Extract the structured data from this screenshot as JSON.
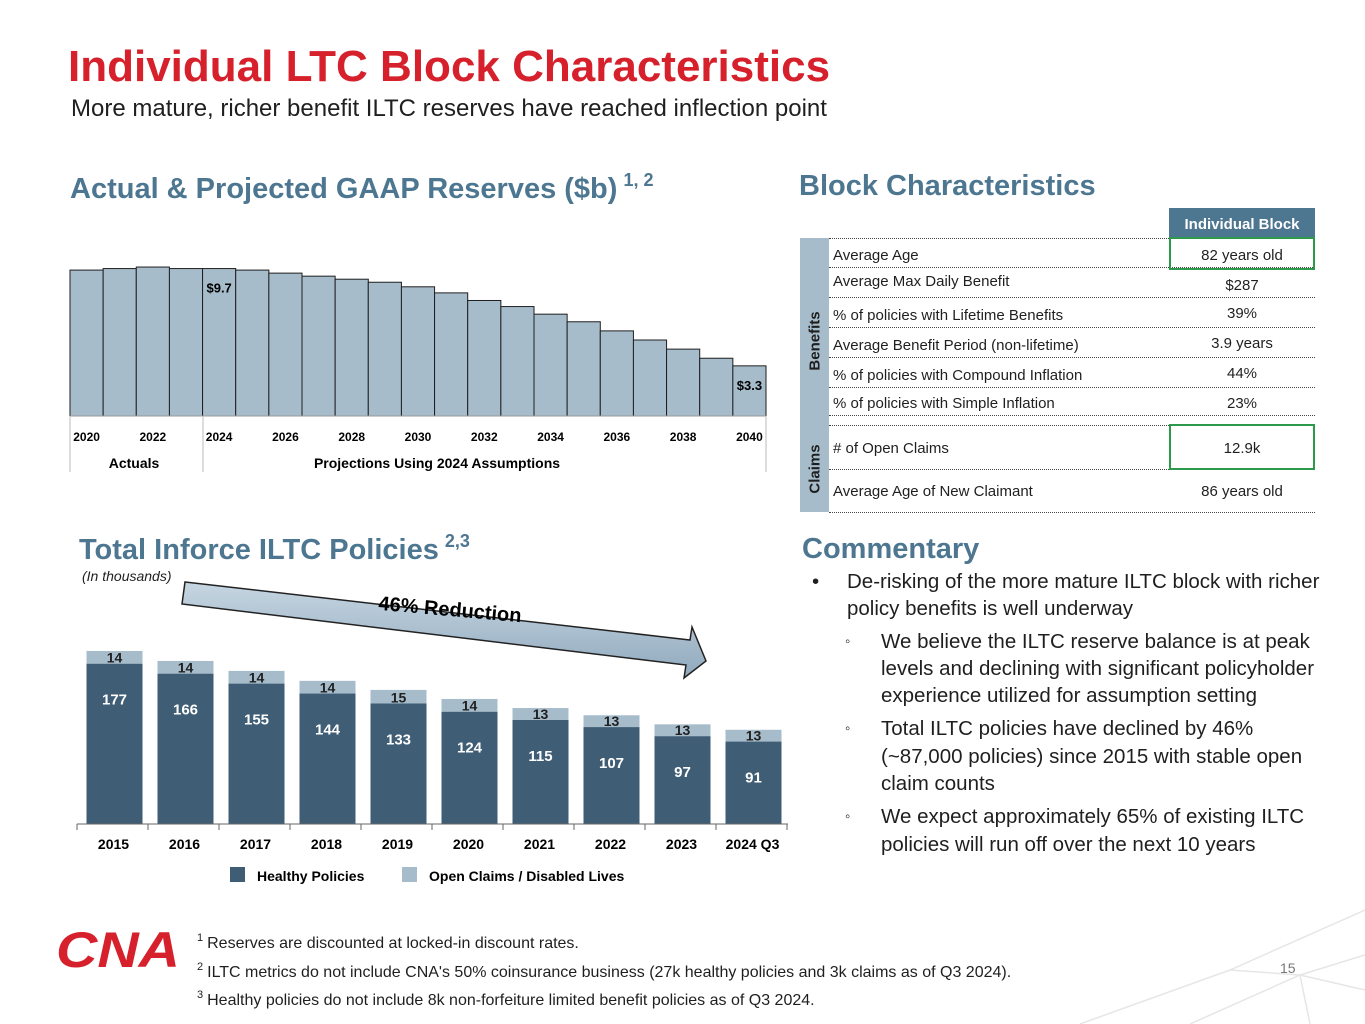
{
  "title": "Individual LTC Block Characteristics",
  "subtitle": "More mature, richer benefit ILTC reserves have reached inflection point",
  "reserves": {
    "heading": "Actual & Projected GAAP Reserves ($b)",
    "heading_sup": "1, 2",
    "label_actuals": "Actuals",
    "label_projections": "Projections Using 2024 Assumptions",
    "chart_data": {
      "type": "bar",
      "title": "Actual & Projected GAAP Reserves ($b)",
      "categories": [
        2020,
        2021,
        2022,
        2023,
        2024,
        2025,
        2026,
        2027,
        2028,
        2029,
        2030,
        2031,
        2032,
        2033,
        2034,
        2035,
        2036,
        2037,
        2038,
        2039,
        2040
      ],
      "tick_labels": [
        "2020",
        "2022",
        "2024",
        "2026",
        "2028",
        "2030",
        "2032",
        "2034",
        "2036",
        "2038",
        "2040"
      ],
      "values": [
        9.6,
        9.7,
        9.8,
        9.7,
        9.7,
        9.6,
        9.4,
        9.2,
        9.0,
        8.8,
        8.5,
        8.1,
        7.6,
        7.2,
        6.7,
        6.2,
        5.6,
        5.0,
        4.4,
        3.8,
        3.3
      ],
      "data_labels": [
        {
          "index": 4,
          "text": "$9.7"
        },
        {
          "index": 20,
          "text": "$3.3"
        }
      ],
      "ylim": [
        0,
        10
      ],
      "xlabel": "",
      "ylabel": "",
      "color": "#a6bccb"
    }
  },
  "block": {
    "heading": "Block Characteristics",
    "column_header": "Individual Block",
    "benefits_label": "Benefits",
    "claims_label": "Claims",
    "benefit_rows": [
      {
        "label": "Average Age",
        "value": "82 years old"
      },
      {
        "label": "Average Max Daily Benefit",
        "value": "$287"
      },
      {
        "label": "% of policies with Lifetime Benefits",
        "value": "39%"
      },
      {
        "label": "Average Benefit Period (non-lifetime)",
        "value": "3.9 years"
      },
      {
        "label": "% of policies with Compound Inflation",
        "value": "44%"
      },
      {
        "label": "% of policies with Simple Inflation",
        "value": "23%"
      }
    ],
    "claim_rows": [
      {
        "label": "# of Open Claims",
        "value": "12.9k"
      },
      {
        "label": "Average Age of New Claimant",
        "value": "86 years old"
      }
    ]
  },
  "policies": {
    "heading": "Total Inforce ILTC Policies",
    "heading_sup": "2,3",
    "note": "(In thousands)",
    "arrow_label": "46% Reduction",
    "chart_data": {
      "type": "bar",
      "stacked": true,
      "title": "Total Inforce ILTC Policies",
      "categories": [
        "2015",
        "2016",
        "2017",
        "2018",
        "2019",
        "2020",
        "2021",
        "2022",
        "2023",
        "2024 Q3"
      ],
      "series": [
        {
          "name": "Healthy Policies",
          "color": "#3f5d75",
          "values": [
            177,
            166,
            155,
            144,
            133,
            124,
            115,
            107,
            97,
            91
          ]
        },
        {
          "name": "Open Claims / Disabled Lives",
          "color": "#a6bccb",
          "values": [
            14,
            14,
            14,
            14,
            15,
            14,
            13,
            13,
            13,
            13
          ]
        }
      ],
      "ylim": [
        0,
        200
      ],
      "legend": "bottom"
    }
  },
  "commentary": {
    "heading": "Commentary",
    "bullet": "De-risking of the more mature ILTC block with richer policy benefits is well underway",
    "subs": [
      "We believe the ILTC reserve balance is at peak levels and declining with significant policyholder experience utilized for assumption setting",
      "Total ILTC policies have declined by 46% (~87,000 policies) since 2015 with stable open claim counts",
      "We expect approximately 65% of existing ILTC policies will run off over the next 10 years"
    ]
  },
  "footnotes": [
    {
      "num": "1",
      "text": "Reserves are discounted at locked-in discount rates."
    },
    {
      "num": "2",
      "text": "ILTC metrics do not include CNA's 50% coinsurance business (27k healthy policies and 3k claims as of Q3 2024)."
    },
    {
      "num": "3",
      "text": "Healthy policies do not include 8k non-forfeiture limited benefit policies as of Q3 2024."
    }
  ],
  "logo_text": "CNA",
  "page_number": "15",
  "colors": {
    "title": "#d6202b",
    "section": "#4d7691",
    "bar_light": "#a6bccb",
    "bar_dark": "#3f5d75",
    "highlight": "#2b9a4a"
  }
}
